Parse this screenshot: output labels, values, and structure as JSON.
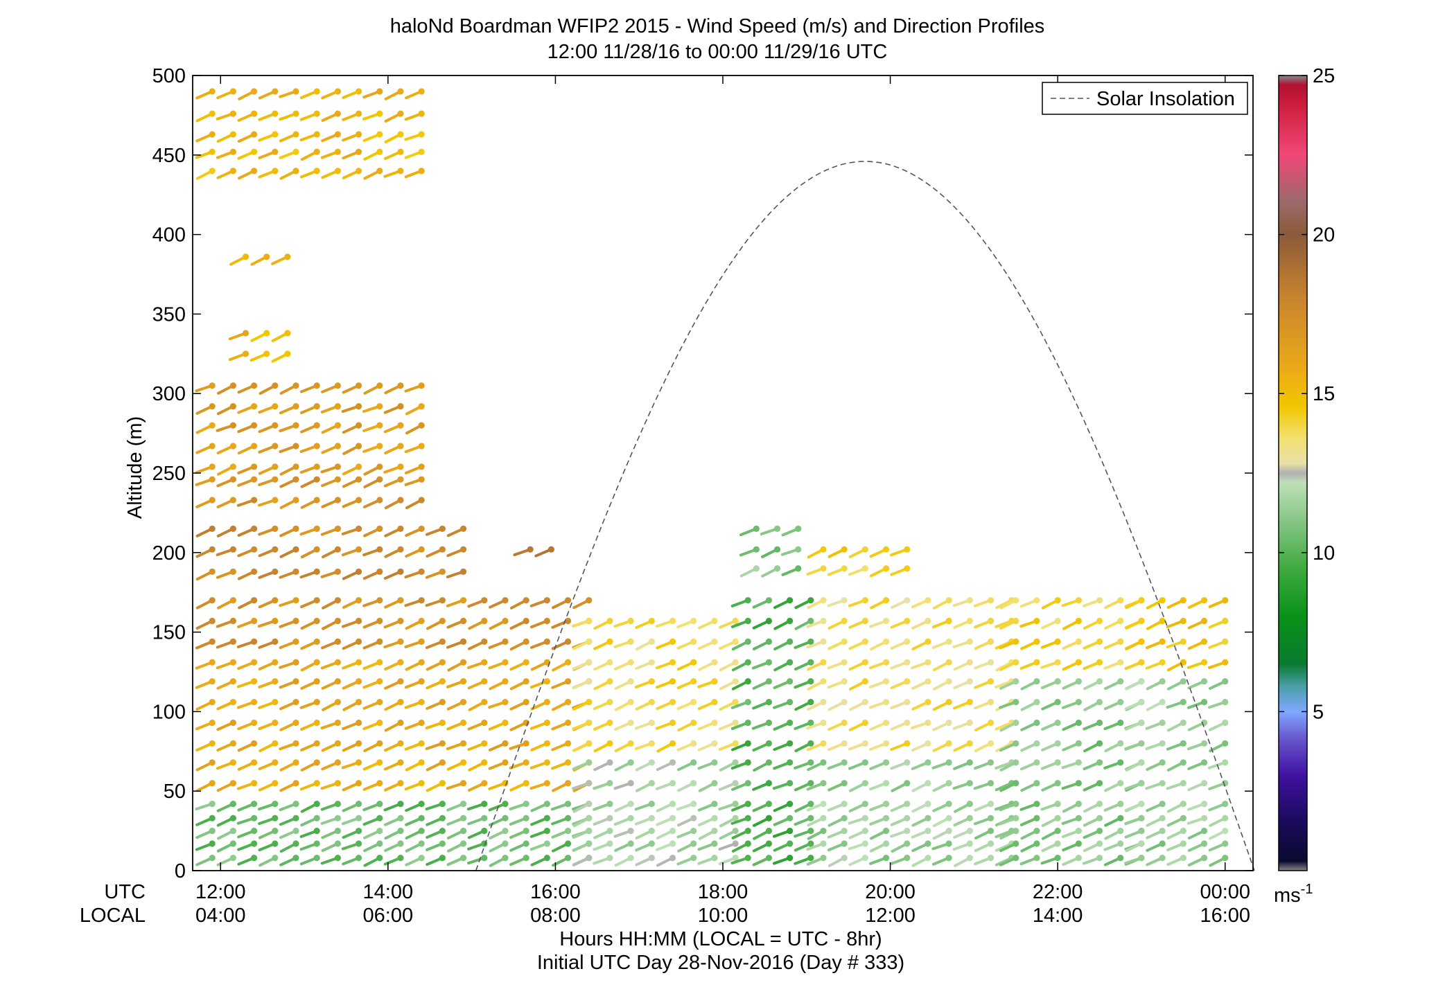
{
  "chart_data": {
    "type": "scatter",
    "title": "haloNd Boardman WFIP2 2015 - Wind Speed (m/s) and Direction Profiles",
    "subtitle": "12:00 11/28/16 to 00:00 11/29/16  UTC",
    "ylabel": "Altitude (m)",
    "xlabel": "Hours HH:MM  (LOCAL = UTC - 8hr)",
    "xlabel2": "Initial UTC Day 28-Nov-2016 (Day # 333)",
    "xaxis_row_labels": [
      "UTC",
      "LOCAL"
    ],
    "xlim_hours_utc": [
      11.6667,
      24.3333
    ],
    "ylim": [
      0,
      500
    ],
    "y_ticks": [
      0,
      50,
      100,
      150,
      200,
      250,
      300,
      350,
      400,
      450,
      500
    ],
    "x_ticks_utc": [
      12,
      14,
      16,
      18,
      20,
      22,
      24
    ],
    "x_tick_labels_utc": [
      "12:00",
      "14:00",
      "16:00",
      "18:00",
      "20:00",
      "22:00",
      "00:00"
    ],
    "x_tick_labels_local": [
      "04:00",
      "06:00",
      "08:00",
      "10:00",
      "12:00",
      "14:00",
      "16:00"
    ],
    "legend": {
      "position": "top-right",
      "entries": [
        {
          "label": "Solar Insolation",
          "style": "dashed",
          "color": "#666666"
        }
      ]
    },
    "colorbar": {
      "range": [
        0,
        25
      ],
      "ticks": [
        5,
        10,
        15,
        20,
        25
      ],
      "tick_labels": [
        "5",
        "10",
        "15",
        "20",
        "25"
      ],
      "unit": "ms-1",
      "stops": [
        {
          "v": 0.0,
          "c": "#888888"
        },
        {
          "v": 0.3,
          "c": "#0a0a30"
        },
        {
          "v": 1.5,
          "c": "#1a0a5a"
        },
        {
          "v": 3.0,
          "c": "#3f12a0"
        },
        {
          "v": 4.2,
          "c": "#6a5ad0"
        },
        {
          "v": 5.0,
          "c": "#7fa8ff"
        },
        {
          "v": 5.8,
          "c": "#4a9ea8"
        },
        {
          "v": 6.5,
          "c": "#0a7a30"
        },
        {
          "v": 8.0,
          "c": "#089218"
        },
        {
          "v": 9.5,
          "c": "#3faa3f"
        },
        {
          "v": 11.0,
          "c": "#86c686"
        },
        {
          "v": 12.2,
          "c": "#bfe0b8"
        },
        {
          "v": 12.5,
          "c": "#b0b0b0"
        },
        {
          "v": 12.8,
          "c": "#e8e0a8"
        },
        {
          "v": 13.6,
          "c": "#f3e070"
        },
        {
          "v": 14.6,
          "c": "#f2c600"
        },
        {
          "v": 15.8,
          "c": "#eaaa18"
        },
        {
          "v": 18.0,
          "c": "#c8842e"
        },
        {
          "v": 20.0,
          "c": "#8c5a3a"
        },
        {
          "v": 21.0,
          "c": "#9a6a6a"
        },
        {
          "v": 22.5,
          "c": "#f04878"
        },
        {
          "v": 24.0,
          "c": "#d02040"
        },
        {
          "v": 24.7,
          "c": "#b01030"
        },
        {
          "v": 25.0,
          "c": "#888888"
        }
      ]
    },
    "solar_insolation": {
      "sunrise_utc": 15.05,
      "sunset_utc": 24.35,
      "peak_altitude_m": 446,
      "peak_utc": 19.7
    },
    "wind_profiles": {
      "time_step_hours": 0.25,
      "direction_note": "barbs point toward lower-left (winds from ~250 deg)",
      "groups": [
        {
          "t0": 11.9,
          "t1": 14.6,
          "heights": [
            440,
            452,
            463,
            476,
            490
          ],
          "speed": 15.2
        },
        {
          "t0": 12.3,
          "t1": 13.0,
          "heights": [
            325,
            338,
            386
          ],
          "speed": 15.4
        },
        {
          "t0": 11.9,
          "t1": 14.4,
          "heights": [
            254,
            267,
            280,
            292,
            305
          ],
          "speed": 16.5
        },
        {
          "t0": 11.9,
          "t1": 14.6,
          "heights": [
            233,
            246
          ],
          "speed": 17.0
        },
        {
          "t0": 11.9,
          "t1": 14.9,
          "heights": [
            188,
            202,
            215
          ],
          "speed": 17.5
        },
        {
          "t0": 15.7,
          "t1": 16.1,
          "heights": [
            202
          ],
          "speed": 18.0
        },
        {
          "t0": 11.9,
          "t1": 16.4,
          "heights": [
            144,
            157,
            170
          ],
          "speed": 17.2
        },
        {
          "t0": 11.9,
          "t1": 16.4,
          "heights": [
            55,
            68,
            80,
            93,
            106,
            119,
            131
          ],
          "speed": 15.8
        },
        {
          "t0": 11.9,
          "t1": 16.4,
          "heights": [
            8,
            17,
            25,
            33,
            42
          ],
          "speed": 10.5
        },
        {
          "t0": 16.4,
          "t1": 18.3,
          "heights": [
            8,
            17,
            25,
            33,
            42,
            55,
            68
          ],
          "speed": 11.8
        },
        {
          "t0": 16.4,
          "t1": 18.3,
          "heights": [
            80,
            93,
            106,
            119,
            131,
            144,
            157
          ],
          "speed": 13.8
        },
        {
          "t0": 18.3,
          "t1": 19.2,
          "heights": [
            8,
            17,
            25,
            33,
            42,
            55,
            68,
            80,
            93,
            106,
            119,
            131,
            144,
            157,
            170
          ],
          "speed": 9.8
        },
        {
          "t0": 18.4,
          "t1": 19.1,
          "heights": [
            190,
            202,
            215
          ],
          "speed": 11.0
        },
        {
          "t0": 19.2,
          "t1": 21.5,
          "heights": [
            8,
            17,
            25,
            33,
            42,
            55,
            68
          ],
          "speed": 11.5
        },
        {
          "t0": 19.2,
          "t1": 21.5,
          "heights": [
            80,
            93,
            106,
            119,
            131,
            144,
            157,
            170
          ],
          "speed": 13.6
        },
        {
          "t0": 19.2,
          "t1": 20.4,
          "heights": [
            190,
            202
          ],
          "speed": 14.2
        },
        {
          "t0": 21.5,
          "t1": 23.0,
          "heights": [
            8,
            17,
            25,
            33,
            42,
            55,
            68,
            80,
            93,
            106,
            119
          ],
          "speed": 11.0
        },
        {
          "t0": 21.5,
          "t1": 23.0,
          "heights": [
            131,
            144,
            157,
            170
          ],
          "speed": 14.2
        },
        {
          "t0": 23.0,
          "t1": 24.0,
          "heights": [
            8,
            17,
            25,
            33,
            42,
            55,
            68,
            80,
            93,
            106,
            119
          ],
          "speed": 11.4
        },
        {
          "t0": 23.0,
          "t1": 24.0,
          "heights": [
            131,
            144,
            157,
            170
          ],
          "speed": 14.6
        }
      ]
    }
  }
}
